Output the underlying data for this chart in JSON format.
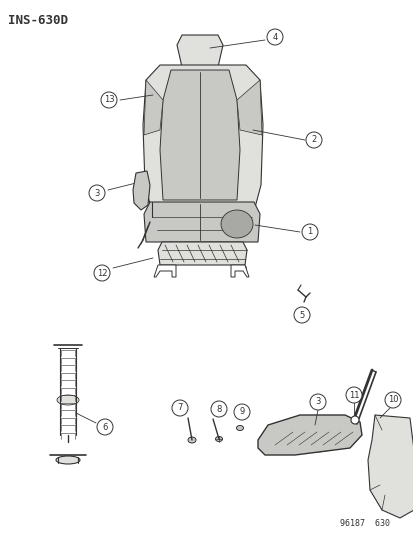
{
  "title": "INS-630D",
  "footer": "96187  630",
  "bg_color": "#ffffff",
  "fig_width": 4.14,
  "fig_height": 5.33,
  "dpi": 100,
  "line_color": "#333333",
  "light_gray": "#e0e0dc",
  "mid_gray": "#c8c8c4",
  "dark_gray": "#a8a8a4"
}
